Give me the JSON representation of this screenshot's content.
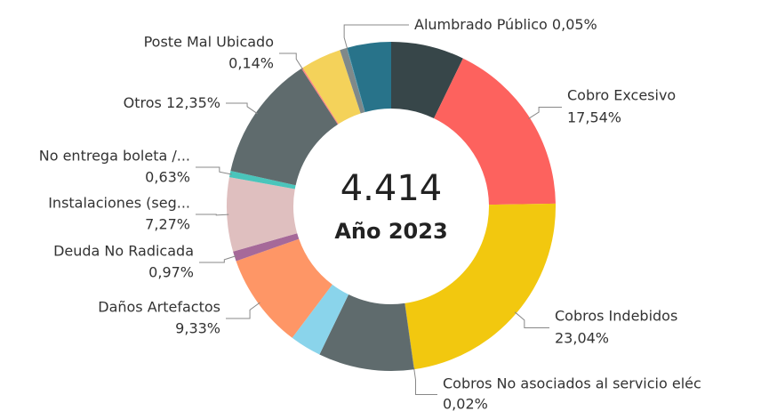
{
  "chart_data": {
    "type": "donut",
    "center_text": "4.414",
    "center_subtitle": "Año 2023",
    "categories": [
      null,
      "Cobro Excesivo",
      "Cobros Indebidos",
      "Cobros No asociados al servicio eléc",
      null,
      null,
      "Daños Artefactos",
      "Deuda No Radicada",
      "Instalaciones (seg...",
      "No entrega boleta /...",
      "Otros",
      "Poste Mal Ubicado",
      null,
      null,
      "Alumbrado Público",
      null
    ],
    "values": [
      7.2,
      17.54,
      23.04,
      0.02,
      9.4,
      3.1,
      9.33,
      0.97,
      7.27,
      0.63,
      12.35,
      0.14,
      4.0,
      0.7,
      0.05,
      4.3
    ],
    "value_labels": [
      null,
      "17,54%",
      "23,04%",
      "0,02%",
      null,
      null,
      "9,33%",
      "0,97%",
      "7,27%",
      "0,63%",
      "12,35%",
      "0,14%",
      null,
      null,
      "0,05%",
      null
    ],
    "colors": [
      "#374649",
      "#fd625e",
      "#f2c80f",
      "#5f6b6d",
      "#5f6b6d",
      "#8ad4eb",
      "#fe9666",
      "#a66999",
      "#dfbfbf",
      "#4ac5bb",
      "#5f6b6d",
      "#fb8281",
      "#f4d25a",
      "#7f898a",
      "#3599b8",
      "#28738a"
    ]
  }
}
